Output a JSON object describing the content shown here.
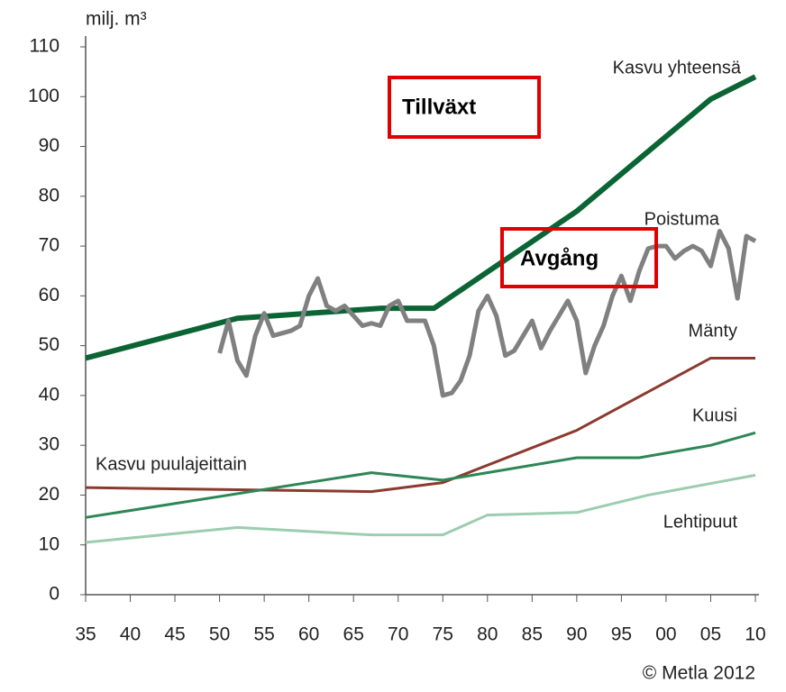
{
  "chart_data": {
    "type": "line",
    "ylabel": "milj. m³",
    "annotations": [
      "Kasvu puulajeittain",
      "Tillväxt",
      "Avgång"
    ],
    "credit": "© Metla 2012",
    "xlim": [
      1935,
      2010
    ],
    "xticks": [
      {
        "value": 1935,
        "label": "35"
      },
      {
        "value": 1940,
        "label": "40"
      },
      {
        "value": 1945,
        "label": "45"
      },
      {
        "value": 1950,
        "label": "50"
      },
      {
        "value": 1955,
        "label": "55"
      },
      {
        "value": 1960,
        "label": "60"
      },
      {
        "value": 1965,
        "label": "65"
      },
      {
        "value": 1970,
        "label": "70"
      },
      {
        "value": 1975,
        "label": "75"
      },
      {
        "value": 1980,
        "label": "80"
      },
      {
        "value": 1985,
        "label": "85"
      },
      {
        "value": 1990,
        "label": "90"
      },
      {
        "value": 1995,
        "label": "95"
      },
      {
        "value": 2000,
        "label": "00"
      },
      {
        "value": 2005,
        "label": "05"
      },
      {
        "value": 2010,
        "label": "10"
      }
    ],
    "ylim": [
      0,
      110
    ],
    "yticks": [
      0,
      10,
      20,
      30,
      40,
      50,
      60,
      70,
      80,
      90,
      100,
      110
    ],
    "series": [
      {
        "name": "Kasvu yhteensä",
        "color": "#0b6433",
        "width": 6,
        "x": [
          1935,
          1952,
          1968,
          1974,
          1990,
          2005,
          2010
        ],
        "values": [
          47.5,
          55.5,
          57.5,
          57.5,
          77,
          99.5,
          104
        ]
      },
      {
        "name": "Poistuma",
        "color": "#808080",
        "width": 5,
        "x": [
          1950,
          1951,
          1952,
          1953,
          1954,
          1955,
          1956,
          1957,
          1958,
          1959,
          1960,
          1961,
          1962,
          1963,
          1964,
          1965,
          1966,
          1967,
          1968,
          1969,
          1970,
          1971,
          1972,
          1973,
          1974,
          1975,
          1976,
          1977,
          1978,
          1979,
          1980,
          1981,
          1982,
          1983,
          1984,
          1985,
          1986,
          1987,
          1988,
          1989,
          1990,
          1991,
          1992,
          1993,
          1994,
          1995,
          1996,
          1997,
          1998,
          1999,
          2000,
          2001,
          2002,
          2003,
          2004,
          2005,
          2006,
          2007,
          2008,
          2009,
          2010
        ],
        "values": [
          48.5,
          55,
          47,
          44,
          52,
          56.5,
          52,
          52.5,
          53,
          54,
          60,
          63.5,
          58,
          57,
          58,
          56,
          54,
          54.5,
          54,
          58,
          59,
          55,
          55,
          55,
          50,
          40,
          40.5,
          43,
          48,
          57,
          60,
          56,
          48,
          49,
          52,
          55,
          49.5,
          53,
          56,
          59,
          55,
          44.5,
          50,
          54,
          60,
          64,
          59,
          65,
          69.5,
          70,
          70,
          67.5,
          69,
          70,
          69,
          66,
          73,
          69.5,
          59.5,
          72,
          71
        ]
      },
      {
        "name": "Mänty",
        "color": "#8b3a2e",
        "width": 3,
        "x": [
          1935,
          1967,
          1975,
          1990,
          2005,
          2010
        ],
        "values": [
          21.5,
          20.7,
          22.5,
          33,
          47.5,
          47.5
        ]
      },
      {
        "name": "Kuusi",
        "color": "#2e8656",
        "width": 3,
        "x": [
          1935,
          1967,
          1975,
          1990,
          1997,
          2005,
          2010
        ],
        "values": [
          15.5,
          24.5,
          23,
          27.5,
          27.5,
          30,
          32.5
        ]
      },
      {
        "name": "Lehtipuut",
        "color": "#9ccdaf",
        "width": 3,
        "x": [
          1935,
          1952,
          1967,
          1975,
          1980,
          1990,
          1998,
          2010
        ],
        "values": [
          10.5,
          13.5,
          12,
          12,
          16,
          16.5,
          20,
          24
        ]
      }
    ]
  }
}
